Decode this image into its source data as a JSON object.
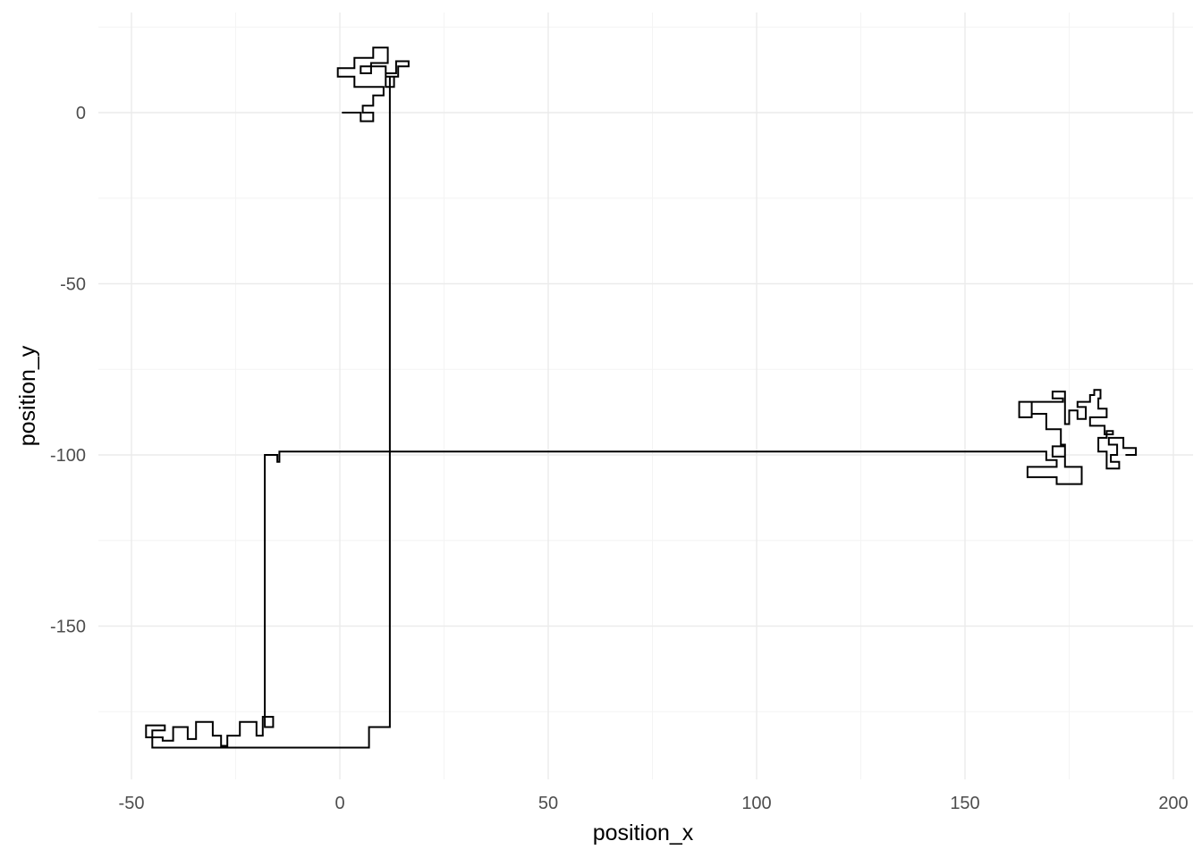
{
  "chart_data": {
    "type": "line",
    "title": "",
    "xlabel": "position_x",
    "ylabel": "position_y",
    "xlim": [
      -50,
      203
    ],
    "ylim": [
      -194,
      25
    ],
    "x_ticks": [
      -50,
      0,
      50,
      100,
      150,
      200
    ],
    "y_ticks": [
      0,
      -50,
      -100,
      -150
    ],
    "grid": true,
    "line_color": "#000000",
    "series": [
      {
        "points": [
          [
            0.5,
            0
          ],
          [
            5,
            0
          ],
          [
            5,
            -2.5
          ],
          [
            8,
            -2.5
          ],
          [
            8,
            0
          ],
          [
            5.5,
            0
          ],
          [
            5.5,
            2
          ],
          [
            8,
            2
          ],
          [
            8,
            5
          ],
          [
            10.5,
            5
          ],
          [
            10.5,
            7.5
          ],
          [
            3.5,
            7.5
          ],
          [
            3.5,
            10.5
          ],
          [
            -0.5,
            10.5
          ],
          [
            -0.5,
            13
          ],
          [
            3.5,
            13
          ],
          [
            3.5,
            16
          ],
          [
            8,
            16
          ],
          [
            8,
            19
          ],
          [
            11.5,
            19
          ],
          [
            11.5,
            14.5
          ],
          [
            7.5,
            14.5
          ],
          [
            7.5,
            11.5
          ],
          [
            5,
            11.5
          ],
          [
            5,
            13.5
          ],
          [
            11,
            13.5
          ],
          [
            11,
            10.5
          ],
          [
            13,
            10.5
          ],
          [
            13,
            7.5
          ],
          [
            11,
            7.5
          ],
          [
            11,
            11.5
          ],
          [
            13.5,
            11.5
          ],
          [
            13.5,
            15
          ],
          [
            16.5,
            15
          ],
          [
            16.5,
            13.5
          ],
          [
            14,
            13.5
          ],
          [
            14,
            10.5
          ],
          [
            12,
            10.5
          ],
          [
            12,
            -179.5
          ],
          [
            7,
            -179.5
          ],
          [
            7,
            -185.5
          ],
          [
            -45,
            -185.5
          ],
          [
            -45,
            -182.5
          ],
          [
            -46.5,
            -182.5
          ],
          [
            -46.5,
            -179
          ],
          [
            -42,
            -179
          ],
          [
            -42,
            -180.5
          ],
          [
            -45,
            -180.5
          ],
          [
            -45,
            -182.5
          ],
          [
            -42.5,
            -182.5
          ],
          [
            -42.5,
            -183.5
          ],
          [
            -40,
            -183.5
          ],
          [
            -40,
            -179.5
          ],
          [
            -36.5,
            -179.5
          ],
          [
            -36.5,
            -183
          ],
          [
            -34.5,
            -183
          ],
          [
            -34.5,
            -178
          ],
          [
            -30.5,
            -178
          ],
          [
            -30.5,
            -182
          ],
          [
            -28.5,
            -182
          ],
          [
            -28.5,
            -185
          ],
          [
            -27,
            -185
          ],
          [
            -27,
            -182
          ],
          [
            -24,
            -182
          ],
          [
            -24,
            -178
          ],
          [
            -20,
            -178
          ],
          [
            -20,
            -182
          ],
          [
            -18.5,
            -182
          ],
          [
            -18.5,
            -176.5
          ],
          [
            -16,
            -176.5
          ],
          [
            -16,
            -179.5
          ],
          [
            -18,
            -179.5
          ],
          [
            -18,
            -100
          ],
          [
            -15,
            -100
          ],
          [
            -15,
            -102
          ],
          [
            -14.5,
            -102
          ],
          [
            -14.5,
            -99
          ],
          [
            169.5,
            -99
          ],
          [
            169.5,
            -101.5
          ],
          [
            172,
            -101.5
          ],
          [
            172,
            -103.5
          ],
          [
            165,
            -103.5
          ],
          [
            165,
            -106.5
          ],
          [
            172,
            -106.5
          ],
          [
            172,
            -108.5
          ],
          [
            178,
            -108.5
          ],
          [
            178,
            -103.5
          ],
          [
            174,
            -103.5
          ],
          [
            174,
            -97.5
          ],
          [
            171,
            -97.5
          ],
          [
            171,
            -100.5
          ],
          [
            174,
            -100.5
          ],
          [
            174,
            -97
          ],
          [
            173,
            -97
          ],
          [
            173,
            -92.5
          ],
          [
            169.5,
            -92.5
          ],
          [
            169.5,
            -88
          ],
          [
            166,
            -88
          ],
          [
            166,
            -84.5
          ],
          [
            163,
            -84.5
          ],
          [
            163,
            -89
          ],
          [
            166,
            -89
          ],
          [
            166,
            -84.5
          ],
          [
            173.5,
            -84.5
          ],
          [
            173.5,
            -83.5
          ],
          [
            171,
            -83.5
          ],
          [
            171,
            -81.5
          ],
          [
            174,
            -81.5
          ],
          [
            174,
            -91
          ],
          [
            175,
            -91
          ],
          [
            175,
            -87
          ],
          [
            177,
            -87
          ],
          [
            177,
            -89.5
          ],
          [
            179,
            -89.5
          ],
          [
            179,
            -86
          ],
          [
            177,
            -86
          ],
          [
            177,
            -84.5
          ],
          [
            180,
            -84.5
          ],
          [
            180,
            -82.5
          ],
          [
            181,
            -82.5
          ],
          [
            181,
            -81
          ],
          [
            182.5,
            -81
          ],
          [
            182.5,
            -83.5
          ],
          [
            182,
            -83.5
          ],
          [
            182,
            -86.5
          ],
          [
            184,
            -86.5
          ],
          [
            184,
            -89
          ],
          [
            180,
            -89
          ],
          [
            180,
            -91.5
          ],
          [
            183.5,
            -91.5
          ],
          [
            183.5,
            -94
          ],
          [
            185.5,
            -94
          ],
          [
            185.5,
            -93
          ],
          [
            184,
            -93
          ],
          [
            184,
            -95
          ],
          [
            182,
            -95
          ],
          [
            182,
            -99
          ],
          [
            184,
            -99
          ],
          [
            184,
            -104
          ],
          [
            187,
            -104
          ],
          [
            187,
            -102
          ],
          [
            185,
            -102
          ],
          [
            185,
            -100
          ],
          [
            186.5,
            -100
          ],
          [
            186.5,
            -97
          ],
          [
            184.5,
            -97
          ],
          [
            184.5,
            -95
          ],
          [
            188,
            -95
          ],
          [
            188,
            -98
          ],
          [
            191,
            -98
          ],
          [
            191,
            -100
          ],
          [
            188.5,
            -100
          ]
        ]
      }
    ]
  }
}
